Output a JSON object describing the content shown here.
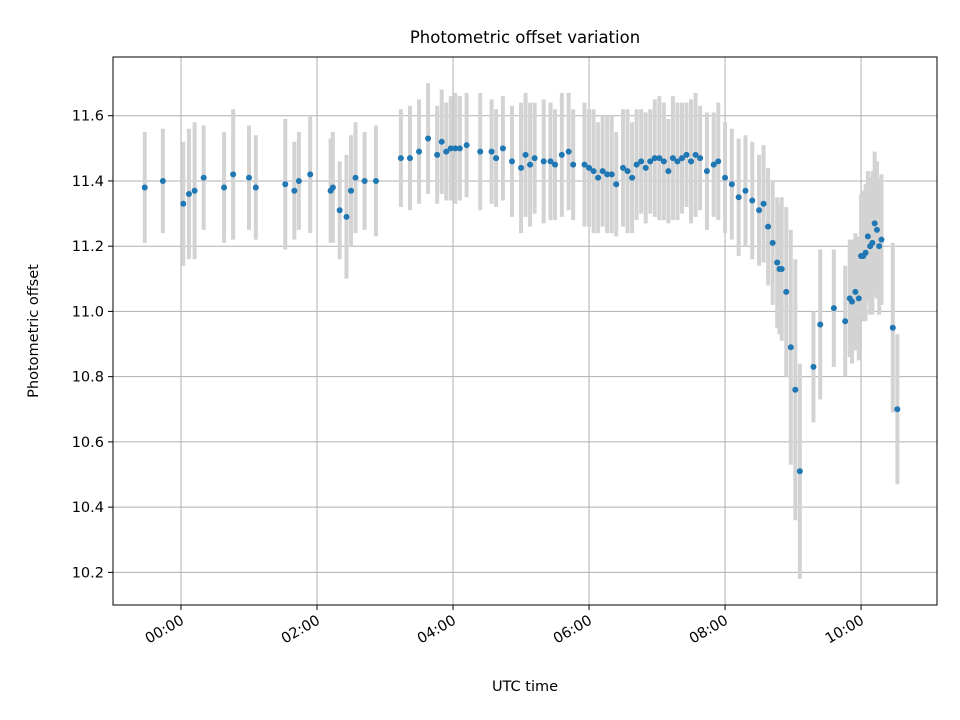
{
  "chart_data": {
    "type": "scatter",
    "title": "Photometric offset variation",
    "xlabel": "UTC time",
    "ylabel": "Photometric offset",
    "x_unit": "UTC time (HH:MM)",
    "xlim": [
      "-01:00",
      "11:07"
    ],
    "ylim": [
      10.1,
      11.78
    ],
    "xticks": [
      "00:00",
      "02:00",
      "04:00",
      "06:00",
      "08:00",
      "10:00"
    ],
    "yticks": [
      "10.2",
      "10.4",
      "10.6",
      "10.8",
      "11.0",
      "11.2",
      "11.4",
      "11.6"
    ],
    "grid": true,
    "colors": {
      "points": "#1f77b4",
      "errorbars": "#d3d3d3",
      "grid": "#b0b0b0"
    },
    "series": [
      {
        "points": [
          [
            "-00:32",
            11.38,
            0.17
          ],
          [
            "-00:16",
            11.4,
            0.16
          ],
          [
            "00:02",
            11.33,
            0.19
          ],
          [
            "00:07",
            11.36,
            0.2
          ],
          [
            "00:12",
            11.37,
            0.21
          ],
          [
            "00:20",
            11.41,
            0.16
          ],
          [
            "00:38",
            11.38,
            0.17
          ],
          [
            "00:46",
            11.42,
            0.2
          ],
          [
            "01:00",
            11.41,
            0.16
          ],
          [
            "01:06",
            11.38,
            0.16
          ],
          [
            "01:32",
            11.39,
            0.2
          ],
          [
            "01:40",
            11.37,
            0.15
          ],
          [
            "01:44",
            11.4,
            0.15
          ],
          [
            "01:54",
            11.42,
            0.18
          ],
          [
            "02:12",
            11.37,
            0.16
          ],
          [
            "02:14",
            11.38,
            0.17
          ],
          [
            "02:20",
            11.31,
            0.15
          ],
          [
            "02:26",
            11.29,
            0.19
          ],
          [
            "02:30",
            11.37,
            0.17
          ],
          [
            "02:34",
            11.41,
            0.17
          ],
          [
            "02:42",
            11.4,
            0.15
          ],
          [
            "02:52",
            11.4,
            0.17
          ],
          [
            "03:14",
            11.47,
            0.15
          ],
          [
            "03:22",
            11.47,
            0.16
          ],
          [
            "03:30",
            11.49,
            0.16
          ],
          [
            "03:38",
            11.53,
            0.17
          ],
          [
            "03:46",
            11.48,
            0.15
          ],
          [
            "03:50",
            11.52,
            0.16
          ],
          [
            "03:54",
            11.49,
            0.15
          ],
          [
            "03:58",
            11.5,
            0.16
          ],
          [
            "04:02",
            11.5,
            0.17
          ],
          [
            "04:06",
            11.5,
            0.16
          ],
          [
            "04:12",
            11.51,
            0.16
          ],
          [
            "04:24",
            11.49,
            0.18
          ],
          [
            "04:34",
            11.49,
            0.16
          ],
          [
            "04:38",
            11.47,
            0.15
          ],
          [
            "04:44",
            11.5,
            0.16
          ],
          [
            "04:52",
            11.46,
            0.17
          ],
          [
            "05:00",
            11.44,
            0.2
          ],
          [
            "05:04",
            11.48,
            0.19
          ],
          [
            "05:08",
            11.45,
            0.19
          ],
          [
            "05:12",
            11.47,
            0.17
          ],
          [
            "05:20",
            11.46,
            0.19
          ],
          [
            "05:26",
            11.46,
            0.18
          ],
          [
            "05:30",
            11.45,
            0.17
          ],
          [
            "05:36",
            11.48,
            0.19
          ],
          [
            "05:42",
            11.49,
            0.18
          ],
          [
            "05:46",
            11.45,
            0.17
          ],
          [
            "05:56",
            11.45,
            0.19
          ],
          [
            "06:00",
            11.44,
            0.18
          ],
          [
            "06:04",
            11.43,
            0.19
          ],
          [
            "06:08",
            11.41,
            0.17
          ],
          [
            "06:12",
            11.43,
            0.17
          ],
          [
            "06:16",
            11.42,
            0.18
          ],
          [
            "06:20",
            11.42,
            0.18
          ],
          [
            "06:24",
            11.39,
            0.16
          ],
          [
            "06:30",
            11.44,
            0.18
          ],
          [
            "06:34",
            11.43,
            0.19
          ],
          [
            "06:38",
            11.41,
            0.17
          ],
          [
            "06:42",
            11.45,
            0.17
          ],
          [
            "06:46",
            11.46,
            0.16
          ],
          [
            "06:50",
            11.44,
            0.17
          ],
          [
            "06:54",
            11.46,
            0.16
          ],
          [
            "06:58",
            11.47,
            0.18
          ],
          [
            "07:02",
            11.47,
            0.19
          ],
          [
            "07:06",
            11.46,
            0.18
          ],
          [
            "07:10",
            11.43,
            0.16
          ],
          [
            "07:14",
            11.47,
            0.19
          ],
          [
            "07:18",
            11.46,
            0.18
          ],
          [
            "07:22",
            11.47,
            0.17
          ],
          [
            "07:26",
            11.48,
            0.16
          ],
          [
            "07:30",
            11.46,
            0.19
          ],
          [
            "07:34",
            11.48,
            0.19
          ],
          [
            "07:38",
            11.47,
            0.16
          ],
          [
            "07:44",
            11.43,
            0.18
          ],
          [
            "07:50",
            11.45,
            0.16
          ],
          [
            "07:54",
            11.46,
            0.18
          ],
          [
            "08:00",
            11.41,
            0.17
          ],
          [
            "08:06",
            11.39,
            0.17
          ],
          [
            "08:12",
            11.35,
            0.18
          ],
          [
            "08:18",
            11.37,
            0.17
          ],
          [
            "08:24",
            11.34,
            0.18
          ],
          [
            "08:30",
            11.31,
            0.17
          ],
          [
            "08:34",
            11.33,
            0.18
          ],
          [
            "08:38",
            11.26,
            0.18
          ],
          [
            "08:42",
            11.21,
            0.19
          ],
          [
            "08:46",
            11.15,
            0.2
          ],
          [
            "08:48",
            11.13,
            0.2
          ],
          [
            "08:50",
            11.13,
            0.22
          ],
          [
            "08:54",
            11.06,
            0.26
          ],
          [
            "08:58",
            10.89,
            0.36
          ],
          [
            "09:02",
            10.76,
            0.4
          ],
          [
            "09:06",
            10.51,
            0.33
          ],
          [
            "09:18",
            10.83,
            0.17
          ],
          [
            "09:24",
            10.96,
            0.23
          ],
          [
            "09:36",
            11.01,
            0.18
          ],
          [
            "09:46",
            10.97,
            0.17
          ],
          [
            "09:50",
            11.04,
            0.18
          ],
          [
            "09:52",
            11.03,
            0.19
          ],
          [
            "09:55",
            11.06,
            0.18
          ],
          [
            "09:58",
            11.04,
            0.19
          ],
          [
            "10:00",
            11.17,
            0.19
          ],
          [
            "10:02",
            11.17,
            0.2
          ],
          [
            "10:04",
            11.18,
            0.21
          ],
          [
            "10:06",
            11.23,
            0.2
          ],
          [
            "10:08",
            11.2,
            0.21
          ],
          [
            "10:10",
            11.21,
            0.22
          ],
          [
            "10:12",
            11.27,
            0.22
          ],
          [
            "10:14",
            11.25,
            0.21
          ],
          [
            "10:16",
            11.2,
            0.21
          ],
          [
            "10:18",
            11.22,
            0.2
          ],
          [
            "10:28",
            10.95,
            0.26
          ],
          [
            "10:32",
            10.7,
            0.23
          ]
        ]
      }
    ]
  }
}
